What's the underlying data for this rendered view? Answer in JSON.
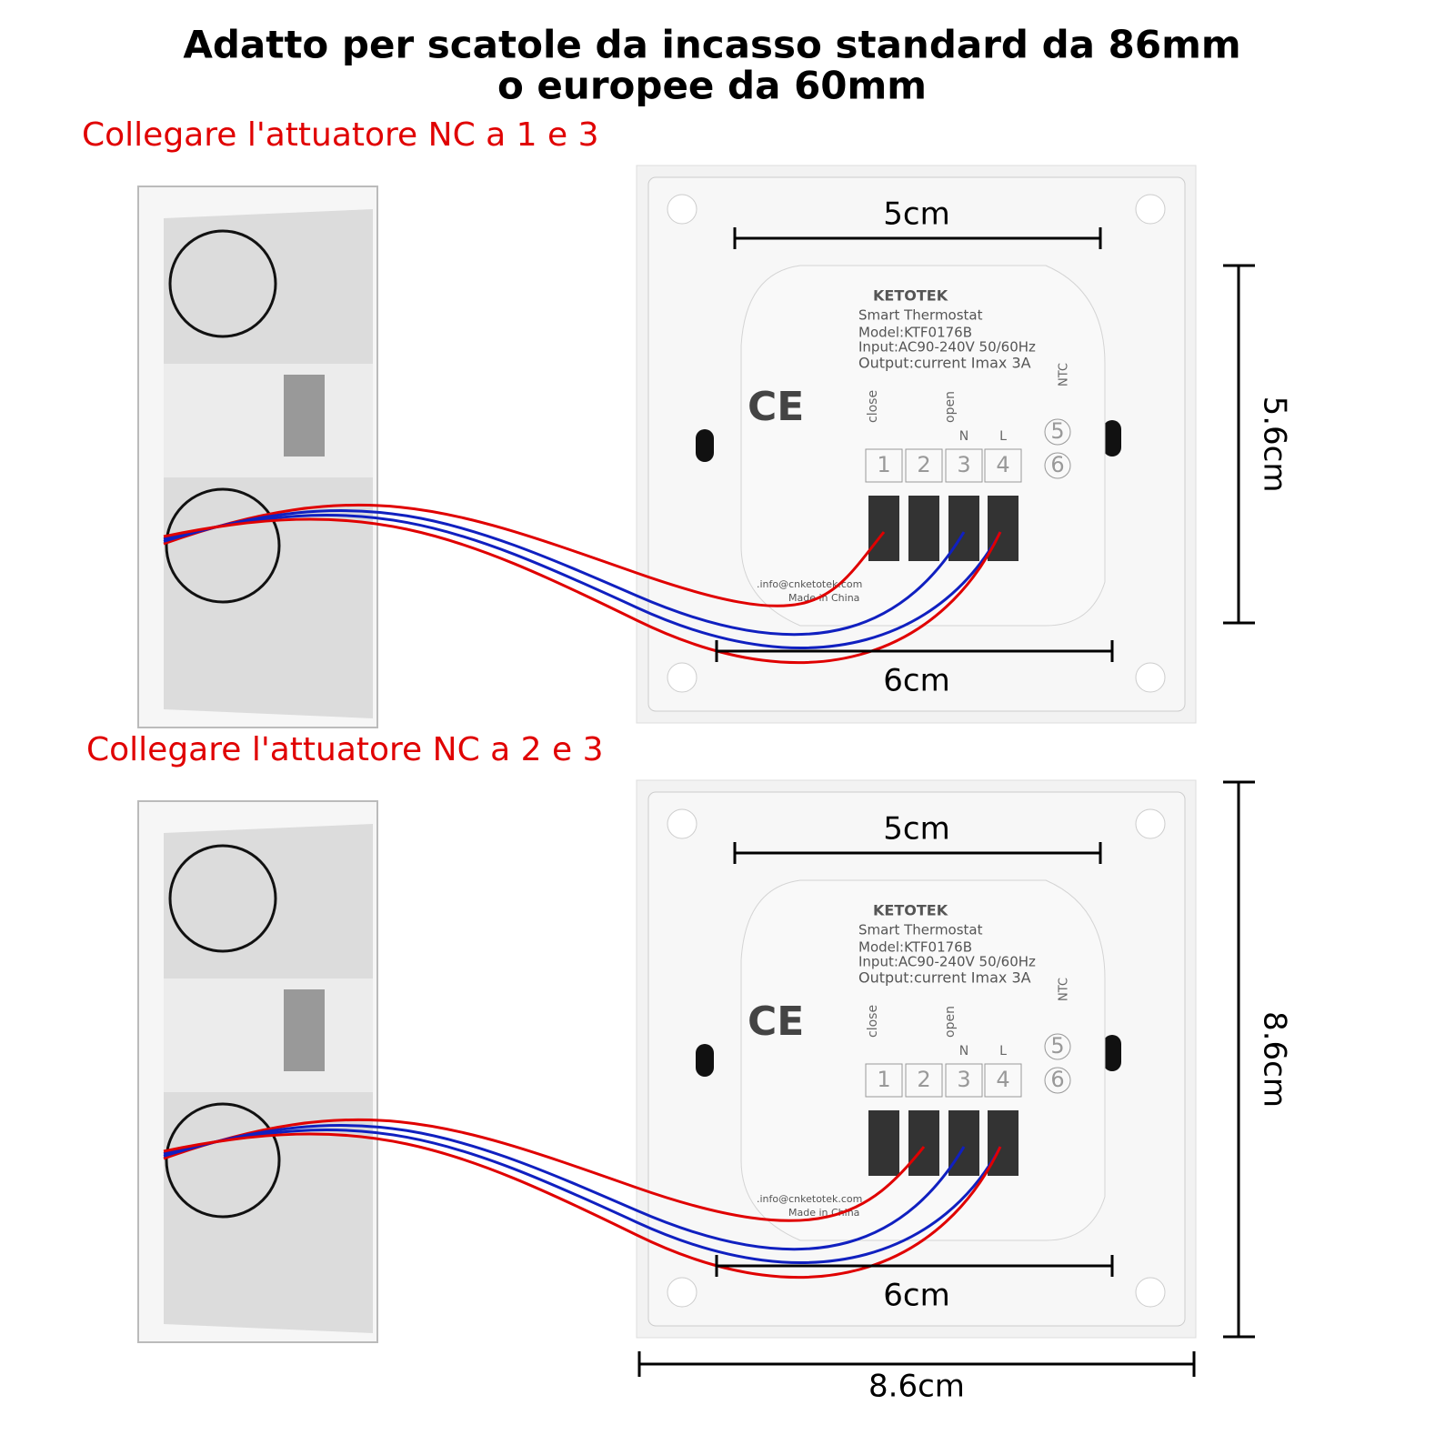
{
  "header": {
    "title_lines": [
      "Adatto per scatole da incasso standard da 86mm",
      "o europee da 60mm"
    ]
  },
  "panels": [
    {
      "caption": "Collegare l'attuatore NC a 1 e 3",
      "dimensions": {
        "top": "5cm",
        "side": "5.6cm",
        "bottom": "6cm"
      },
      "device": {
        "brand": "KETOTEK",
        "product": "Smart Thermostat",
        "model": "Model:KTF0176B",
        "input": "Input:AC90-240V 50/60Hz",
        "output": "Output:current Imax 3A",
        "mark": "CE",
        "terminal_labels": [
          "close",
          "open",
          "N",
          "L",
          "NTC"
        ],
        "terminal_numbers": [
          "1",
          "2",
          "3",
          "4",
          "5",
          "6"
        ],
        "email": ".info@cnketotek.com",
        "origin": "Made in China"
      }
    },
    {
      "caption": "Collegare l'attuatore NC a 2 e 3",
      "dimensions": {
        "top": "5cm",
        "side": "8.6cm",
        "bottom": "6cm",
        "outer_width": "8.6cm"
      },
      "device": {
        "brand": "KETOTEK",
        "product": "Smart Thermostat",
        "model": "Model:KTF0176B",
        "input": "Input:AC90-240V 50/60Hz",
        "output": "Output:current Imax 3A",
        "mark": "CE",
        "terminal_labels": [
          "close",
          "open",
          "N",
          "L",
          "NTC"
        ],
        "terminal_numbers": [
          "1",
          "2",
          "3",
          "4",
          "5",
          "6"
        ],
        "email": ".info@cnketotek.com",
        "origin": "Made in China"
      }
    }
  ]
}
